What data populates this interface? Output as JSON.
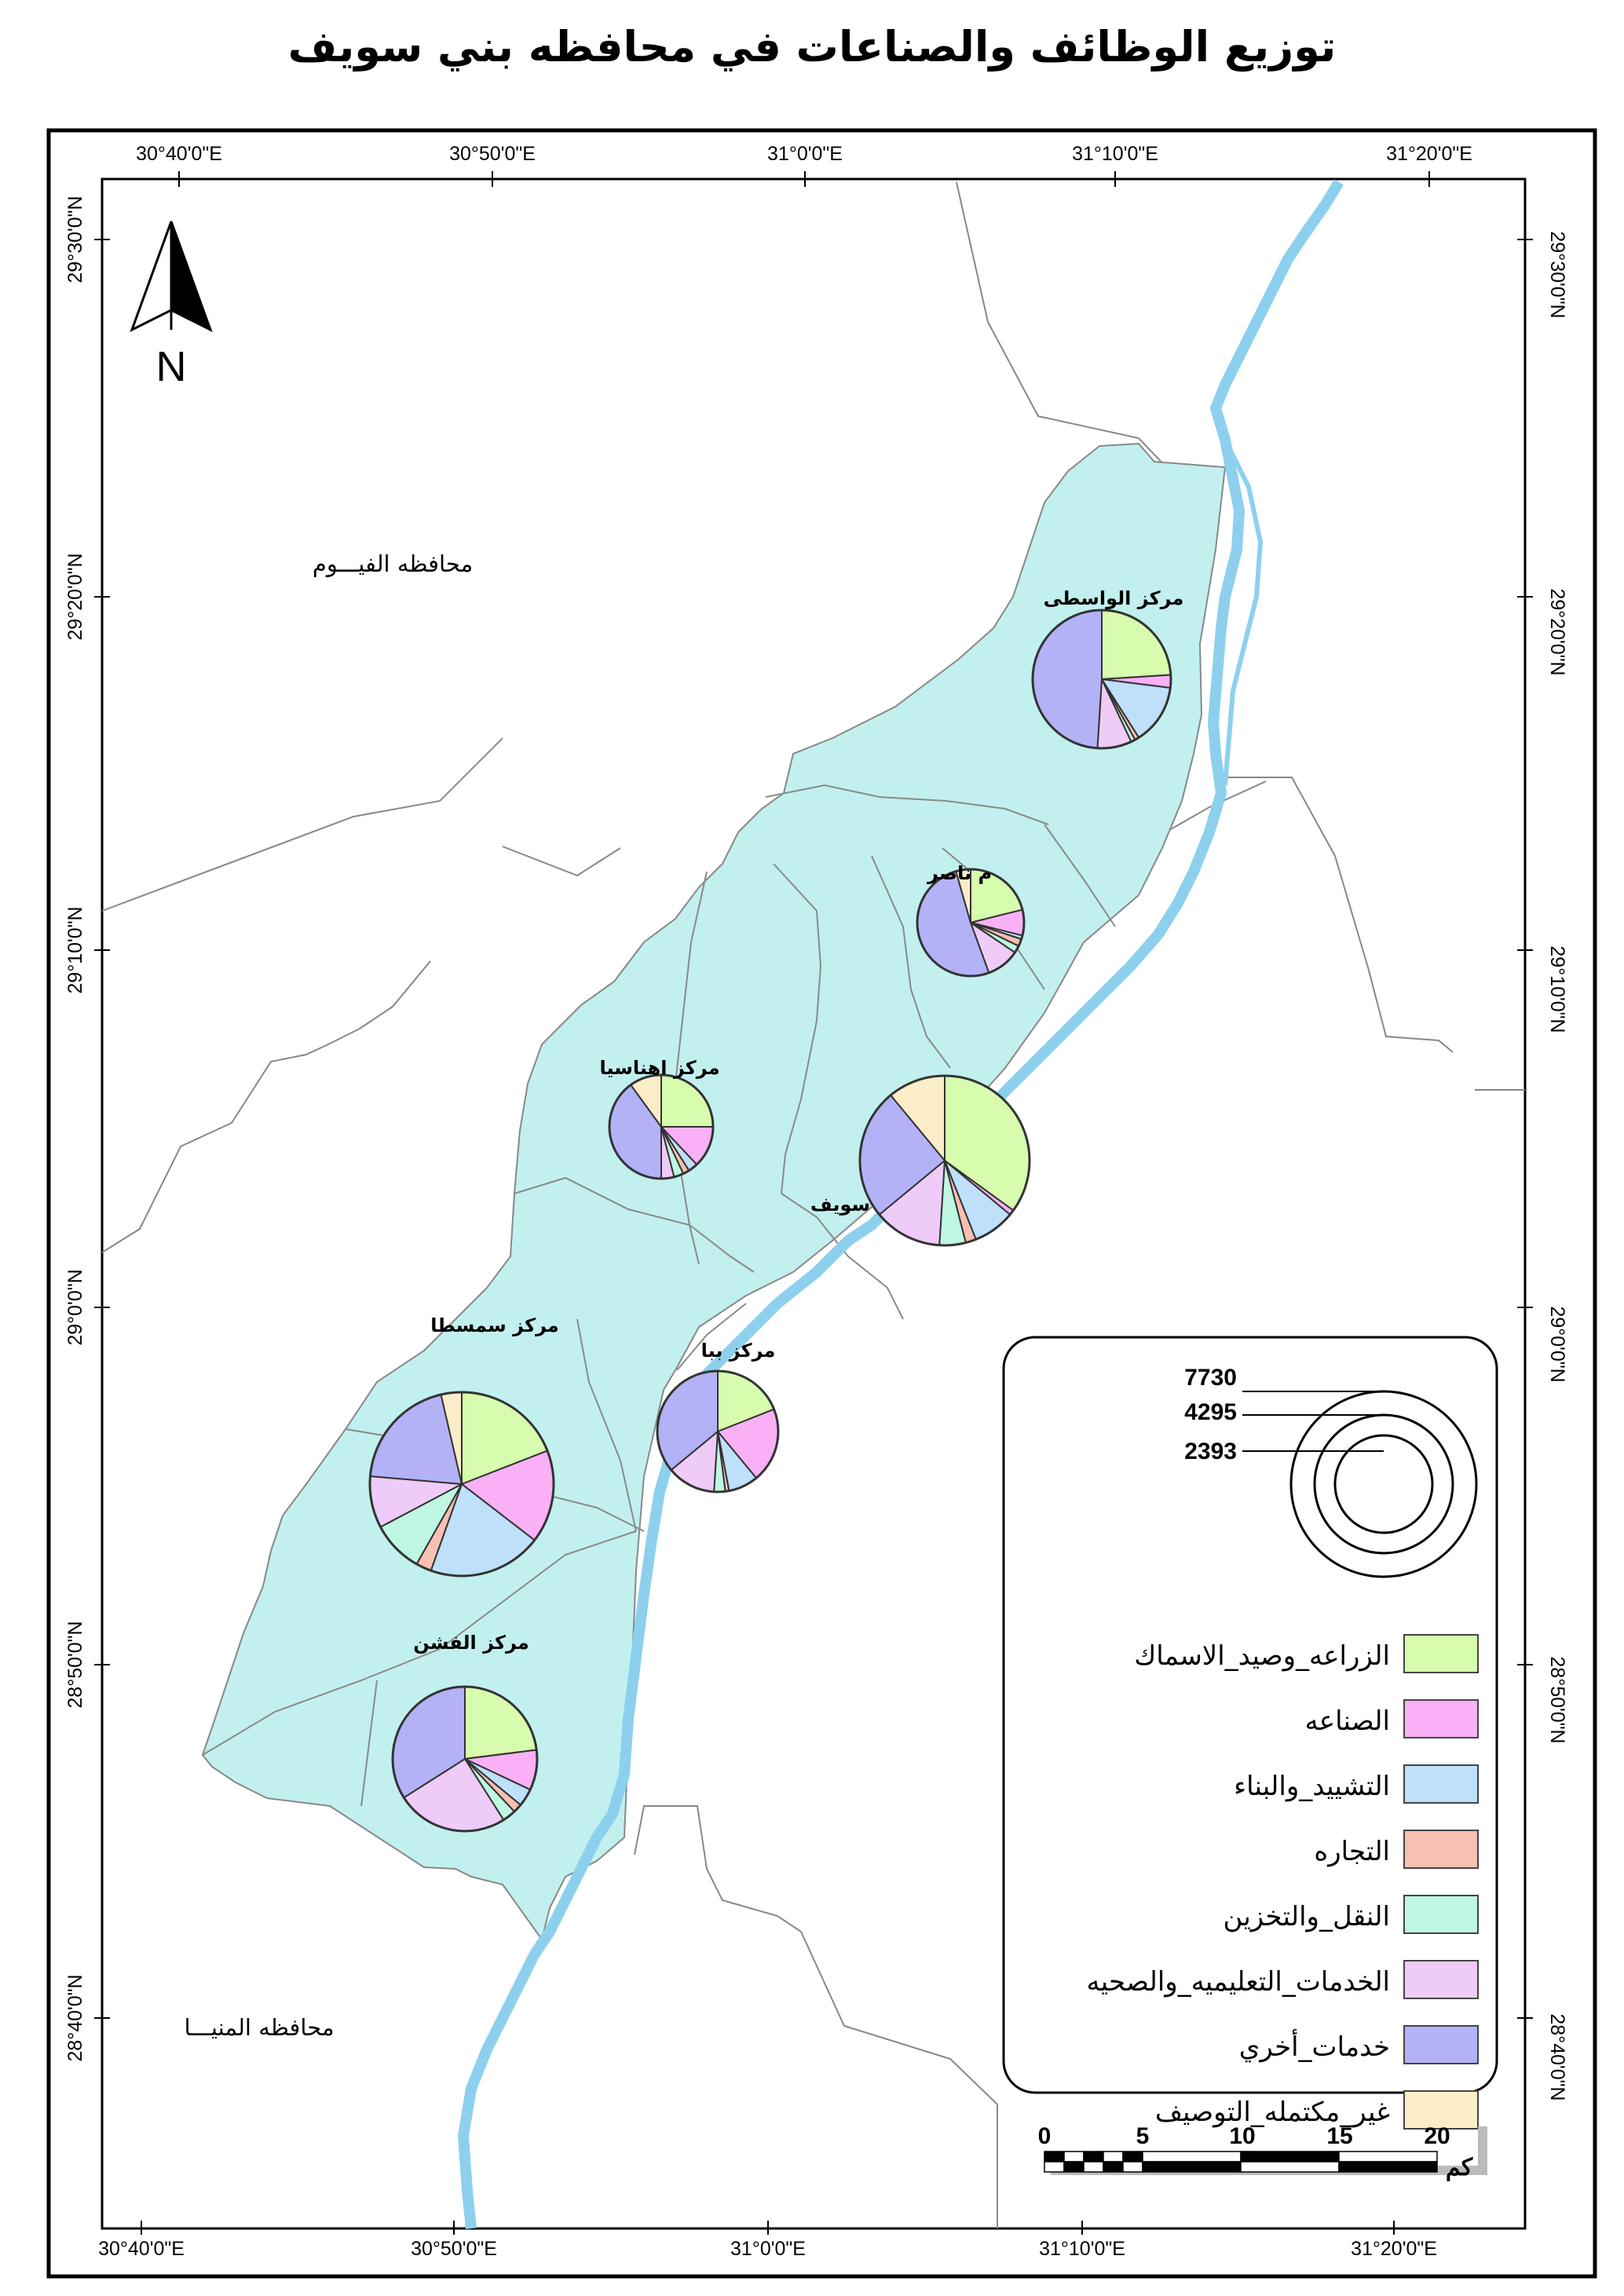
{
  "title": "توزيع الوظائف والصناعات في محافظه بني سويف",
  "coords": {
    "lon_top": [
      "30°40'0\"E",
      "30°50'0\"E",
      "31°0'0\"E",
      "31°10'0\"E",
      "31°20'0\"E"
    ],
    "lon_bottom": [
      "30°40'0\"E",
      "30°50'0\"E",
      "31°0'0\"E",
      "31°10'0\"E",
      "31°20'0\"E"
    ],
    "lat_left": [
      "29°30'0\"N",
      "29°20'0\"N",
      "29°10'0\"N",
      "29°0'0\"N",
      "28°50'0\"N",
      "28°40'0\"N"
    ],
    "lat_right": [
      "29°30'0\"N",
      "29°20'0\"N",
      "29°10'0\"N",
      "29°0'0\"N",
      "28°50'0\"N",
      "28°40'0\"N"
    ]
  },
  "north_arrow": {
    "letter": "N",
    "icon": "north-arrow-icon"
  },
  "places": {
    "fayoum": "محافظه الفيـــوم",
    "minya": "محافظه المنيـــا"
  },
  "districts": [
    {
      "label": "مركز الواسطى"
    },
    {
      "label": "م     ناصر"
    },
    {
      "label": "مركز اهناسيا"
    },
    {
      "label": "سويف"
    },
    {
      "label": "مركز ببا"
    },
    {
      "label": "مركز سمسطا"
    },
    {
      "label": "مركز الفشن"
    }
  ],
  "categories": [
    {
      "label": "الزراعه_وصيد_الاسماك",
      "color": "#d7fcad"
    },
    {
      "label": "الصناعه",
      "color": "#f9b0f5"
    },
    {
      "label": "التشييد_والبناء",
      "color": "#bee0fb"
    },
    {
      "label": "التجاره",
      "color": "#f7c0b1"
    },
    {
      "label": "النقل_والتخزين",
      "color": "#bff7e2"
    },
    {
      "label": "الخدمات_التعليميه_والصحيه",
      "color": "#efcbf7"
    },
    {
      "label": "خدمات_أخري",
      "color": "#b3b2f7"
    },
    {
      "label": "غير_مكتمله_التوصيف",
      "color": "#fbedc8"
    }
  ],
  "chart_data": {
    "type": "pie",
    "series": [
      {
        "name": "مركز الواسطى",
        "values": [
          24,
          3,
          14,
          1,
          1,
          8,
          49,
          0
        ]
      },
      {
        "name": "م     ناصر",
        "values": [
          19,
          7,
          1,
          2,
          2,
          9,
          46,
          4
        ]
      },
      {
        "name": "مركز اهناسيا",
        "values": [
          25,
          13,
          3,
          2,
          3,
          4,
          40,
          10
        ]
      },
      {
        "name": "سويف",
        "values": [
          35,
          1,
          8,
          2,
          5,
          13,
          25,
          11
        ]
      },
      {
        "name": "مركز ببا",
        "values": [
          19,
          20,
          8,
          1,
          3,
          13,
          36,
          0
        ]
      },
      {
        "name": "مركز سمسطا",
        "values": [
          21,
          18,
          22,
          3,
          10,
          10,
          22,
          4
        ]
      },
      {
        "name": "مركز الفشن",
        "values": [
          23,
          9,
          4,
          2,
          3,
          25,
          34,
          0
        ]
      }
    ]
  },
  "size_legend": {
    "values": [
      "7730",
      "4295",
      "2393"
    ]
  },
  "scale_bar": {
    "ticks": [
      "0",
      "5",
      "10",
      "15",
      "20"
    ],
    "unit": "كم"
  },
  "colors": {
    "province": "#c2f0ee",
    "river": "#8dd0ee",
    "border": "#888888"
  }
}
